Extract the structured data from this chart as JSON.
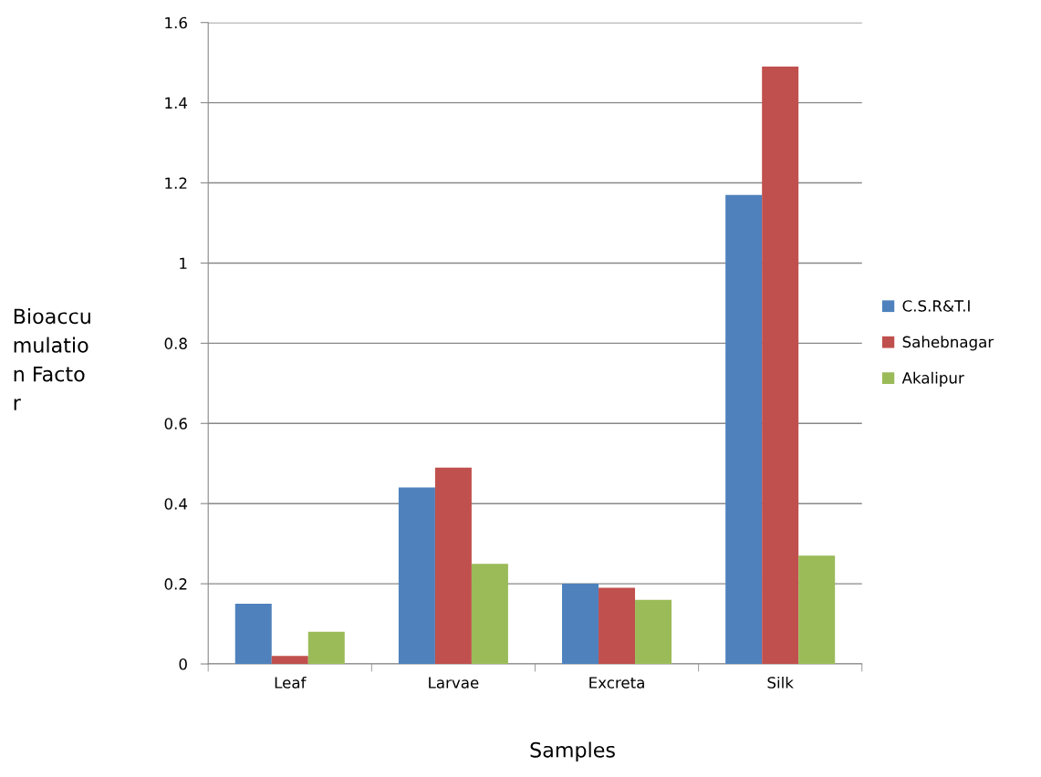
{
  "chart_data": {
    "type": "bar",
    "xlabel": "Samples",
    "ylabel": "Bioaccumulation Factor",
    "categories": [
      "Leaf",
      "Larvae",
      "Excreta",
      "Silk"
    ],
    "series": [
      {
        "name": "C.S.R&T.I",
        "color": "#4f81bd",
        "values": [
          0.15,
          0.44,
          0.2,
          1.17
        ]
      },
      {
        "name": "Sahebnagar",
        "color": "#c0504d",
        "values": [
          0.02,
          0.49,
          0.19,
          1.49
        ]
      },
      {
        "name": "Akalipur",
        "color": "#9bbb59",
        "values": [
          0.08,
          0.25,
          0.16,
          0.27
        ]
      }
    ],
    "ylim": [
      0,
      1.6
    ],
    "yticks": [
      0,
      0.2,
      0.4,
      0.6,
      0.8,
      1,
      1.2,
      1.4,
      1.6
    ],
    "grid": "y",
    "legend": "right"
  }
}
